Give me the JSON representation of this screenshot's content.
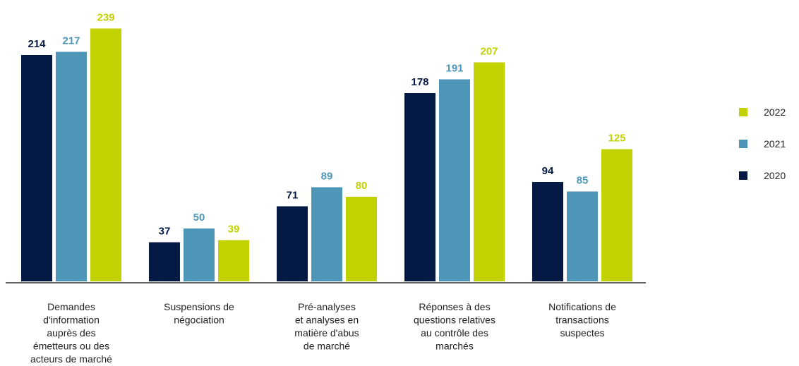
{
  "chart_data": {
    "type": "bar",
    "categories": [
      [
        "Demandes",
        "d'information",
        "auprès des",
        "émetteurs ou des",
        "acteurs de marché"
      ],
      [
        "Suspensions de",
        "négociation"
      ],
      [
        "Pré-analyses",
        "et analyses en",
        "matière d'abus",
        "de marché"
      ],
      [
        "Réponses à des",
        "questions relatives",
        "au contrôle des",
        "marchés"
      ],
      [
        "Notifications de",
        "transactions",
        "suspectes"
      ]
    ],
    "series": [
      {
        "name": "2020",
        "color": "#041a45",
        "values": [
          214,
          37,
          71,
          178,
          94
        ]
      },
      {
        "name": "2021",
        "color": "#4e96b8",
        "values": [
          217,
          50,
          89,
          191,
          85
        ]
      },
      {
        "name": "2022",
        "color": "#c2d100",
        "values": [
          239,
          39,
          80,
          207,
          125
        ]
      }
    ],
    "legend_order": [
      "2022",
      "2021",
      "2020"
    ],
    "legend_position": "right",
    "ylim": [
      0,
      250
    ],
    "grid": false
  }
}
